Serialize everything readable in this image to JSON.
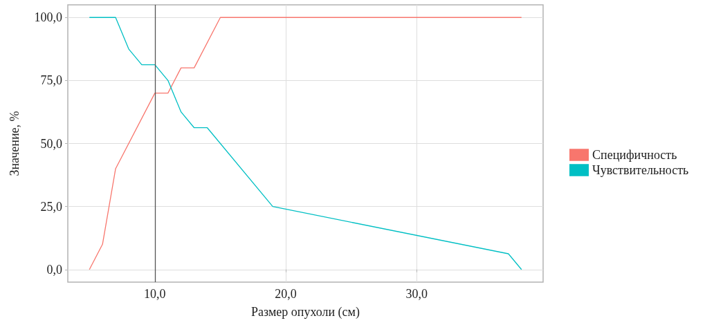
{
  "chart_data": {
    "type": "line",
    "xlabel": "Размер опухоли (см)",
    "ylabel": "Значение, %",
    "xlim": [
      3.35,
      39.65
    ],
    "ylim": [
      -5,
      105
    ],
    "xticks": [
      {
        "value": 10,
        "label": "10,0"
      },
      {
        "value": 20,
        "label": "20,0"
      },
      {
        "value": 30,
        "label": "30,0"
      }
    ],
    "yticks": [
      {
        "value": 0,
        "label": "0,0"
      },
      {
        "value": 25,
        "label": "25,0"
      },
      {
        "value": 50,
        "label": "50,0"
      },
      {
        "value": 75,
        "label": "75,0"
      },
      {
        "value": 100,
        "label": "100,0"
      }
    ],
    "grid": true,
    "legend": "right",
    "marker": "none",
    "line_style": "solid",
    "ref_lines": [
      {
        "axis": "x",
        "value": 10,
        "label": null,
        "color": "#555555"
      }
    ],
    "series": [
      {
        "name": "Специфичность",
        "color": "#f8766d",
        "x": [
          5,
          6,
          7,
          10,
          11,
          12,
          13,
          15,
          38
        ],
        "values": [
          0,
          10,
          40,
          70,
          70,
          80,
          80,
          100,
          100
        ]
      },
      {
        "name": "Чувствительность",
        "color": "#00bfc4",
        "x": [
          5,
          7,
          8,
          9,
          10,
          11,
          12,
          13,
          14,
          19,
          37,
          38
        ],
        "values": [
          100,
          100,
          87.5,
          81.25,
          81.25,
          75,
          62.5,
          56.25,
          56.25,
          25,
          6.25,
          0
        ]
      }
    ]
  }
}
